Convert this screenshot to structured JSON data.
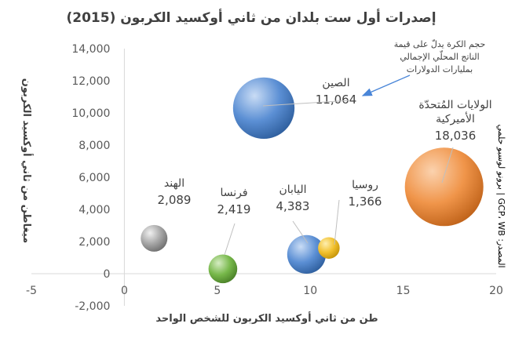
{
  "chart_data": {
    "type": "bubble",
    "title": "إصدرات أول ست بلدان من ثاني أوكسيد الكربون (2015)",
    "xlabel": "طن من ثاني أوكسيد الكربون للشخص الواحد",
    "ylabel": "ميغاطن من ثاني أوكسيد الكربون",
    "xlim": [
      -5,
      20
    ],
    "ylim": [
      -2000,
      14000
    ],
    "xticks": [
      "-5",
      "0",
      "5",
      "10",
      "15",
      "20"
    ],
    "yticks": [
      "-2,000",
      "0",
      "2,000",
      "4,000",
      "6,000",
      "8,000",
      "10,000",
      "12,000",
      "14,000"
    ],
    "grid": false,
    "note": [
      "حجم الكرة يدلّ على قيمة",
      "الناتج المحلّي الإجمالي",
      "بمليارات الدولارات"
    ],
    "source": "المصدر: GCP، WB | برونو لوسبو حلمي",
    "points": [
      {
        "name": "الصين",
        "value_label": "11,064",
        "x": 7.5,
        "y": 10300,
        "size": 11064,
        "color": "#5b8fd4"
      },
      {
        "name": "الولايات المُتحدّة الأميركية",
        "name_lines": [
          "الولايات المُتحدّة",
          "الأميركية"
        ],
        "value_label": "18,036",
        "x": 17.2,
        "y": 5400,
        "size": 18036,
        "color": "#f0954a"
      },
      {
        "name": "الهند",
        "value_label": "2,089",
        "x": 1.6,
        "y": 2200,
        "size": 2089,
        "color": "#a6a6a6"
      },
      {
        "name": "فرنسا",
        "value_label": "2,419",
        "x": 5.3,
        "y": 300,
        "size": 2419,
        "color": "#77b84a"
      },
      {
        "name": "اليابان",
        "value_label": "4,383",
        "x": 9.8,
        "y": 1200,
        "size": 4383,
        "color": "#5b8fd4"
      },
      {
        "name": "روسيا",
        "value_label": "1,366",
        "x": 11.0,
        "y": 1600,
        "size": 1366,
        "color": "#f2c12e"
      }
    ]
  }
}
